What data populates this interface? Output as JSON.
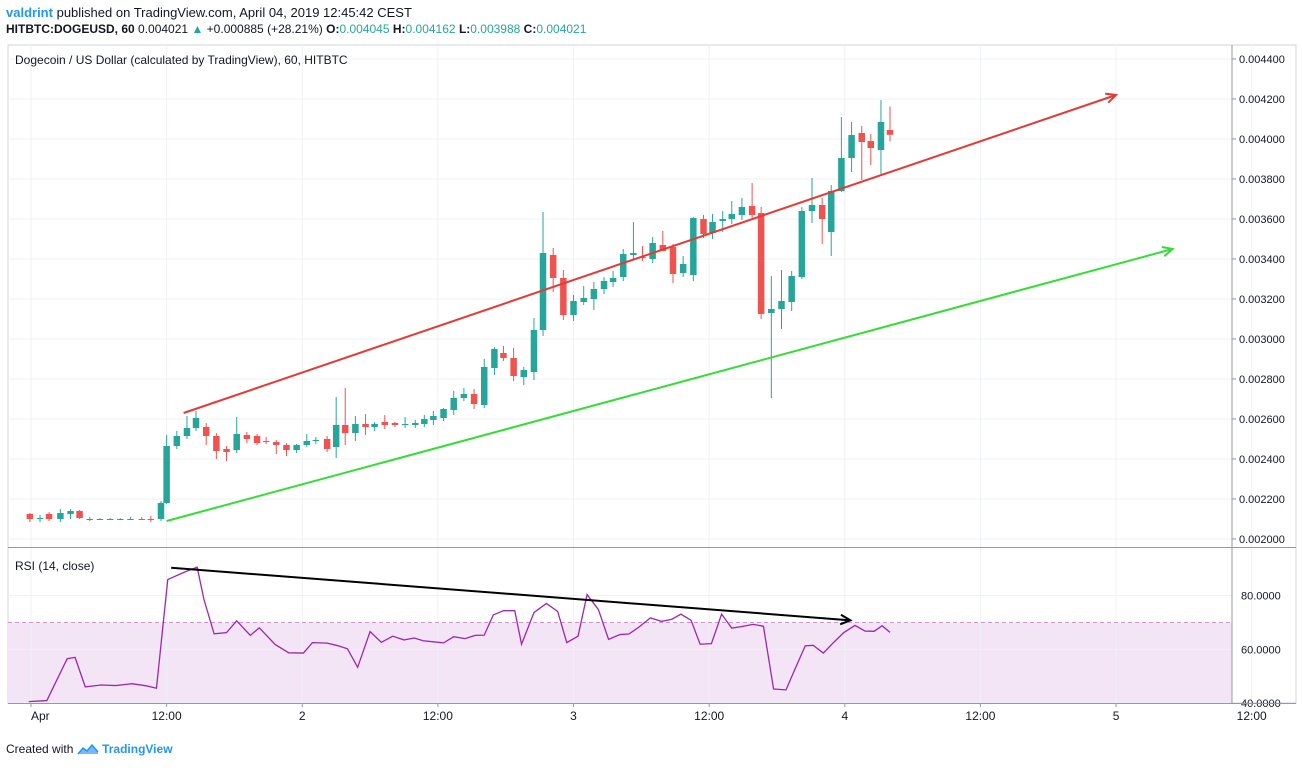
{
  "header": {
    "user": "valdrint",
    "published_text": "published on TradingView.com, April 04, 2019 12:45:42 CEST",
    "symbol": "HITBTC:DOGEUSD, 60",
    "last": "0.004021",
    "change_arrow": "▲",
    "change": "+0.000885 (+28.21%)",
    "o_label": "O:",
    "o_value": "0.004045",
    "h_label": "H:",
    "h_value": "0.004162",
    "l_label": "L:",
    "l_value": "0.003988",
    "c_label": "C:",
    "c_value": "0.004021"
  },
  "footer": {
    "created_with": "Created with",
    "brand": "TradingView"
  },
  "colors": {
    "up": "#26a69a",
    "down": "#ef5350",
    "resistance": "#e53935",
    "support": "#33dd33",
    "divergence": "#000000",
    "rsi": "#9c27b0",
    "rsi_band": "#f3e5f5"
  },
  "chart_data": [
    {
      "type": "candlestick",
      "title": "Dogecoin / US Dollar (calculated by TradingView), 60, HITBTC",
      "ylim": [
        0.00198,
        0.00445
      ],
      "y_ticks": [
        "0.004400",
        "0.004200",
        "0.004000",
        "0.003800",
        "0.003600",
        "0.003400",
        "0.003200",
        "0.003000",
        "0.002800",
        "0.002600",
        "0.002400",
        "0.002200",
        "0.002000"
      ],
      "x_ticks": [
        "Apr",
        "12:00",
        "2",
        "12:00",
        "3",
        "12:00",
        "4",
        "12:00",
        "5",
        "12:00"
      ],
      "x_tick_hours": [
        0,
        12,
        24,
        36,
        48,
        60,
        72,
        84,
        96,
        108
      ],
      "xlim_hours": [
        0,
        116
      ],
      "candles": [
        {
          "t": -0.1,
          "o": 0.002125,
          "h": 0.00213,
          "l": 0.002085,
          "c": 0.0021
        },
        {
          "t": 0.8,
          "o": 0.0021,
          "h": 0.00212,
          "l": 0.002085,
          "c": 0.002105
        },
        {
          "t": 1.6,
          "o": 0.002125,
          "h": 0.002135,
          "l": 0.00209,
          "c": 0.0021
        },
        {
          "t": 2.6,
          "o": 0.0021,
          "h": 0.00215,
          "l": 0.002085,
          "c": 0.00213
        },
        {
          "t": 3.5,
          "o": 0.002125,
          "h": 0.00215,
          "l": 0.0021,
          "c": 0.00214
        },
        {
          "t": 4.3,
          "o": 0.00214,
          "h": 0.002145,
          "l": 0.0021,
          "c": 0.002105
        },
        {
          "t": 5.2,
          "o": 0.0021,
          "h": 0.00211,
          "l": 0.00209,
          "c": 0.0021
        },
        {
          "t": 6.1,
          "o": 0.0021,
          "h": 0.002105,
          "l": 0.002095,
          "c": 0.0021
        },
        {
          "t": 7.0,
          "o": 0.0021,
          "h": 0.002105,
          "l": 0.002095,
          "c": 0.0021
        },
        {
          "t": 7.9,
          "o": 0.0021,
          "h": 0.002105,
          "l": 0.002095,
          "c": 0.0021
        },
        {
          "t": 8.8,
          "o": 0.0021,
          "h": 0.00211,
          "l": 0.002095,
          "c": 0.0021
        },
        {
          "t": 9.8,
          "o": 0.0021,
          "h": 0.00211,
          "l": 0.002095,
          "c": 0.002095
        },
        {
          "t": 10.6,
          "o": 0.0021,
          "h": 0.002115,
          "l": 0.002085,
          "c": 0.002095
        },
        {
          "t": 11.5,
          "o": 0.0021,
          "h": 0.00219,
          "l": 0.00209,
          "c": 0.00218
        },
        {
          "t": 12.0,
          "o": 0.00218,
          "h": 0.00252,
          "l": 0.002175,
          "c": 0.002465
        },
        {
          "t": 12.9,
          "o": 0.002465,
          "h": 0.00254,
          "l": 0.00245,
          "c": 0.002515
        },
        {
          "t": 13.8,
          "o": 0.002515,
          "h": 0.002615,
          "l": 0.0025,
          "c": 0.002555
        },
        {
          "t": 14.6,
          "o": 0.002555,
          "h": 0.00264,
          "l": 0.00254,
          "c": 0.002605
        },
        {
          "t": 15.5,
          "o": 0.00256,
          "h": 0.00258,
          "l": 0.00247,
          "c": 0.002515
        },
        {
          "t": 16.4,
          "o": 0.002515,
          "h": 0.00253,
          "l": 0.0024,
          "c": 0.00244
        },
        {
          "t": 17.3,
          "o": 0.00245,
          "h": 0.002465,
          "l": 0.00239,
          "c": 0.002435
        },
        {
          "t": 18.2,
          "o": 0.002445,
          "h": 0.00261,
          "l": 0.00243,
          "c": 0.002525
        },
        {
          "t": 19.1,
          "o": 0.00252,
          "h": 0.002535,
          "l": 0.00248,
          "c": 0.0025
        },
        {
          "t": 20.0,
          "o": 0.002515,
          "h": 0.002525,
          "l": 0.00247,
          "c": 0.00248
        },
        {
          "t": 20.8,
          "o": 0.00249,
          "h": 0.00251,
          "l": 0.002475,
          "c": 0.002485
        },
        {
          "t": 21.7,
          "o": 0.002485,
          "h": 0.002495,
          "l": 0.002425,
          "c": 0.00247
        },
        {
          "t": 22.6,
          "o": 0.00247,
          "h": 0.00248,
          "l": 0.002415,
          "c": 0.002445
        },
        {
          "t": 23.5,
          "o": 0.002445,
          "h": 0.002475,
          "l": 0.00243,
          "c": 0.00247
        },
        {
          "t": 24.4,
          "o": 0.00247,
          "h": 0.002525,
          "l": 0.00246,
          "c": 0.00249
        },
        {
          "t": 25.2,
          "o": 0.00249,
          "h": 0.00251,
          "l": 0.002475,
          "c": 0.002495
        },
        {
          "t": 26.2,
          "o": 0.0025,
          "h": 0.002515,
          "l": 0.002435,
          "c": 0.00245
        },
        {
          "t": 27.0,
          "o": 0.00246,
          "h": 0.00271,
          "l": 0.002405,
          "c": 0.00257
        },
        {
          "t": 27.8,
          "o": 0.00257,
          "h": 0.002755,
          "l": 0.00247,
          "c": 0.00253
        },
        {
          "t": 28.7,
          "o": 0.00253,
          "h": 0.002615,
          "l": 0.00249,
          "c": 0.002575
        },
        {
          "t": 29.6,
          "o": 0.002575,
          "h": 0.002625,
          "l": 0.00252,
          "c": 0.00256
        },
        {
          "t": 30.4,
          "o": 0.00256,
          "h": 0.002585,
          "l": 0.00254,
          "c": 0.002575
        },
        {
          "t": 31.3,
          "o": 0.002585,
          "h": 0.00262,
          "l": 0.00255,
          "c": 0.00257
        },
        {
          "t": 32.2,
          "o": 0.00258,
          "h": 0.002585,
          "l": 0.00256,
          "c": 0.00257
        },
        {
          "t": 33.1,
          "o": 0.002575,
          "h": 0.00261,
          "l": 0.002555,
          "c": 0.002575
        },
        {
          "t": 34.0,
          "o": 0.00257,
          "h": 0.002595,
          "l": 0.002555,
          "c": 0.00258
        },
        {
          "t": 34.8,
          "o": 0.002575,
          "h": 0.00262,
          "l": 0.00256,
          "c": 0.0026
        },
        {
          "t": 35.6,
          "o": 0.002595,
          "h": 0.00264,
          "l": 0.00257,
          "c": 0.002615
        },
        {
          "t": 36.5,
          "o": 0.002605,
          "h": 0.002655,
          "l": 0.00259,
          "c": 0.00265
        },
        {
          "t": 37.4,
          "o": 0.002645,
          "h": 0.00274,
          "l": 0.00262,
          "c": 0.002705
        },
        {
          "t": 38.3,
          "o": 0.002705,
          "h": 0.002755,
          "l": 0.00269,
          "c": 0.002725
        },
        {
          "t": 39.2,
          "o": 0.002725,
          "h": 0.00275,
          "l": 0.00265,
          "c": 0.002675
        },
        {
          "t": 40.1,
          "o": 0.00267,
          "h": 0.0029,
          "l": 0.002655,
          "c": 0.00286
        },
        {
          "t": 41.0,
          "o": 0.002855,
          "h": 0.00296,
          "l": 0.00282,
          "c": 0.00295
        },
        {
          "t": 41.8,
          "o": 0.00293,
          "h": 0.002965,
          "l": 0.00289,
          "c": 0.002905
        },
        {
          "t": 42.7,
          "o": 0.002905,
          "h": 0.002955,
          "l": 0.00279,
          "c": 0.002815
        },
        {
          "t": 43.6,
          "o": 0.00281,
          "h": 0.00286,
          "l": 0.00277,
          "c": 0.002845
        },
        {
          "t": 44.5,
          "o": 0.002835,
          "h": 0.003105,
          "l": 0.002795,
          "c": 0.003045
        },
        {
          "t": 45.3,
          "o": 0.003045,
          "h": 0.003635,
          "l": 0.003015,
          "c": 0.00343
        },
        {
          "t": 46.2,
          "o": 0.00342,
          "h": 0.003455,
          "l": 0.003235,
          "c": 0.003305
        },
        {
          "t": 47.1,
          "o": 0.003305,
          "h": 0.003345,
          "l": 0.003095,
          "c": 0.00312
        },
        {
          "t": 48.0,
          "o": 0.00312,
          "h": 0.00322,
          "l": 0.00309,
          "c": 0.00319
        },
        {
          "t": 48.9,
          "o": 0.003185,
          "h": 0.003265,
          "l": 0.00317,
          "c": 0.003205
        },
        {
          "t": 49.8,
          "o": 0.0032,
          "h": 0.003285,
          "l": 0.003145,
          "c": 0.00325
        },
        {
          "t": 50.7,
          "o": 0.00325,
          "h": 0.00331,
          "l": 0.003225,
          "c": 0.00329
        },
        {
          "t": 51.5,
          "o": 0.003285,
          "h": 0.00334,
          "l": 0.00326,
          "c": 0.003305
        },
        {
          "t": 52.4,
          "o": 0.00331,
          "h": 0.00345,
          "l": 0.00329,
          "c": 0.003425
        },
        {
          "t": 53.3,
          "o": 0.00342,
          "h": 0.003585,
          "l": 0.003395,
          "c": 0.00343
        },
        {
          "t": 54.1,
          "o": 0.00341,
          "h": 0.003465,
          "l": 0.00339,
          "c": 0.003405
        },
        {
          "t": 55.0,
          "o": 0.0034,
          "h": 0.00351,
          "l": 0.00338,
          "c": 0.00348
        },
        {
          "t": 55.9,
          "o": 0.00347,
          "h": 0.00354,
          "l": 0.00345,
          "c": 0.00344
        },
        {
          "t": 56.8,
          "o": 0.00346,
          "h": 0.003475,
          "l": 0.00328,
          "c": 0.003325
        },
        {
          "t": 57.7,
          "o": 0.00333,
          "h": 0.003415,
          "l": 0.00331,
          "c": 0.003375
        },
        {
          "t": 58.6,
          "o": 0.00332,
          "h": 0.00361,
          "l": 0.00329,
          "c": 0.003605
        },
        {
          "t": 59.5,
          "o": 0.0036,
          "h": 0.00362,
          "l": 0.003505,
          "c": 0.003525
        },
        {
          "t": 60.3,
          "o": 0.00353,
          "h": 0.003625,
          "l": 0.0035,
          "c": 0.003585
        },
        {
          "t": 61.2,
          "o": 0.00359,
          "h": 0.00364,
          "l": 0.003535,
          "c": 0.0036
        },
        {
          "t": 62.0,
          "o": 0.0036,
          "h": 0.00369,
          "l": 0.003575,
          "c": 0.003625
        },
        {
          "t": 62.9,
          "o": 0.00362,
          "h": 0.003705,
          "l": 0.003595,
          "c": 0.00366
        },
        {
          "t": 63.8,
          "o": 0.003665,
          "h": 0.00378,
          "l": 0.003605,
          "c": 0.00362
        },
        {
          "t": 64.6,
          "o": 0.00363,
          "h": 0.00366,
          "l": 0.0031,
          "c": 0.003125
        },
        {
          "t": 65.5,
          "o": 0.00313,
          "h": 0.003315,
          "l": 0.002705,
          "c": 0.00315
        },
        {
          "t": 66.4,
          "o": 0.00315,
          "h": 0.003345,
          "l": 0.00305,
          "c": 0.00319
        },
        {
          "t": 67.3,
          "o": 0.003185,
          "h": 0.00334,
          "l": 0.00314,
          "c": 0.003315
        },
        {
          "t": 68.2,
          "o": 0.00331,
          "h": 0.00366,
          "l": 0.0033,
          "c": 0.00364
        },
        {
          "t": 69.1,
          "o": 0.00364,
          "h": 0.003805,
          "l": 0.00358,
          "c": 0.00367
        },
        {
          "t": 70.0,
          "o": 0.00367,
          "h": 0.003705,
          "l": 0.003475,
          "c": 0.0036
        },
        {
          "t": 70.8,
          "o": 0.003535,
          "h": 0.00377,
          "l": 0.003415,
          "c": 0.00374
        },
        {
          "t": 71.7,
          "o": 0.00374,
          "h": 0.00411,
          "l": 0.003735,
          "c": 0.003905
        },
        {
          "t": 72.6,
          "o": 0.003905,
          "h": 0.004085,
          "l": 0.003835,
          "c": 0.00402
        },
        {
          "t": 73.5,
          "o": 0.00403,
          "h": 0.004065,
          "l": 0.003795,
          "c": 0.003985
        },
        {
          "t": 74.3,
          "o": 0.00399,
          "h": 0.004025,
          "l": 0.00387,
          "c": 0.003955
        },
        {
          "t": 75.2,
          "o": 0.003945,
          "h": 0.004195,
          "l": 0.003815,
          "c": 0.004085
        },
        {
          "t": 76.0,
          "o": 0.004045,
          "h": 0.004162,
          "l": 0.003988,
          "c": 0.004021
        }
      ],
      "trendlines": [
        {
          "name": "resistance",
          "x0": 13.5,
          "y0": 0.00263,
          "x1": 96,
          "y1": 0.00422,
          "arrow": true
        },
        {
          "name": "support",
          "x0": 12.0,
          "y0": 0.00209,
          "x1": 101,
          "y1": 0.00345,
          "arrow": true
        }
      ]
    },
    {
      "type": "line",
      "title": "RSI (14, close)",
      "ylim": [
        40,
        97
      ],
      "y_ticks": [
        "80.0000",
        "60.0000",
        "40.0000"
      ],
      "y_tick_values": [
        80,
        60,
        40
      ],
      "overbought": 70,
      "oversold": 30,
      "x_hours": [
        -0.2,
        1.4,
        3.2,
        3.9,
        4.8,
        6.2,
        7.5,
        8.9,
        10.2,
        11.1,
        12.1,
        13.6,
        14.7,
        15.3,
        16.2,
        17.3,
        18.2,
        19.4,
        20.2,
        21.6,
        22.8,
        24.1,
        24.9,
        26.2,
        27.1,
        28.0,
        28.9,
        30.0,
        31.0,
        32.0,
        33.0,
        33.9,
        34.7,
        35.6,
        36.5,
        37.4,
        38.4,
        39.3,
        40.1,
        40.9,
        41.8,
        42.8,
        43.4,
        44.5,
        45.6,
        46.6,
        47.4,
        48.4,
        49.2,
        50.2,
        51.1,
        52.1,
        52.9,
        53.8,
        54.8,
        55.8,
        56.7,
        57.5,
        58.4,
        59.2,
        60.2,
        61.1,
        62.0,
        62.9,
        63.9,
        64.8,
        65.7,
        66.8,
        67.6,
        68.5,
        69.2,
        70.1,
        71.0,
        71.9,
        72.9,
        73.8,
        74.6,
        75.3,
        76.0
      ],
      "values": [
        40.5,
        40.9,
        56.5,
        57,
        46,
        46.7,
        46.5,
        47.2,
        46.4,
        45.5,
        86,
        88.8,
        90.6,
        78.6,
        65.8,
        66.2,
        70.6,
        65.2,
        68,
        61.8,
        58.7,
        58.6,
        62.5,
        62.3,
        61.4,
        60.2,
        53.3,
        66.6,
        62.6,
        64.9,
        63.5,
        64.2,
        63.2,
        62.8,
        62.4,
        64.7,
        64,
        65.2,
        65.3,
        72.8,
        74.4,
        74.4,
        61.9,
        73.7,
        77.1,
        74.1,
        62.5,
        64.9,
        80.4,
        74.8,
        63.7,
        65.5,
        65.7,
        68.3,
        71.7,
        70.4,
        71.2,
        73.1,
        70.8,
        61.9,
        62.1,
        73.1,
        67.9,
        68.5,
        69.3,
        68.6,
        45.2,
        44.9,
        52.7,
        61.3,
        61.5,
        58.6,
        62.5,
        66.2,
        68.9,
        66.8,
        66.7,
        68.8,
        66.3
      ],
      "trendlines": [
        {
          "name": "bearish-divergence",
          "x0": 12.4,
          "y0": 90.4,
          "x1": 72.5,
          "y1": 70.8,
          "arrow": true
        }
      ]
    }
  ]
}
